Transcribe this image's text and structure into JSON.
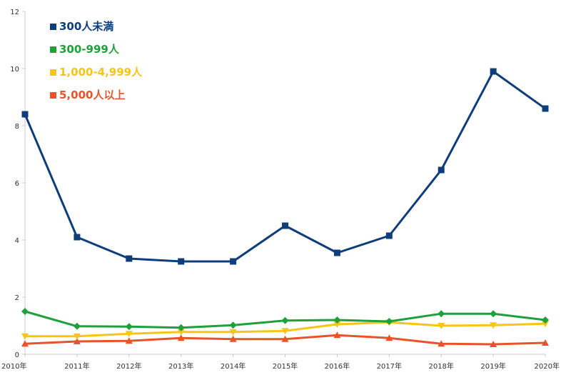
{
  "chart_data": {
    "type": "line",
    "title": "",
    "xlabel": "",
    "ylabel": "",
    "categories": [
      "2010年",
      "2011年",
      "2012年",
      "2013年",
      "2014年",
      "2015年",
      "2016年",
      "2017年",
      "2018年",
      "2019年",
      "2020年"
    ],
    "ylim": [
      0,
      12
    ],
    "yticks": [
      0,
      2,
      4,
      6,
      8,
      10,
      12
    ],
    "grid": false,
    "legend_position": "top-left",
    "series": [
      {
        "name": "300人未満",
        "color": "#0d3d7a",
        "marker": "square",
        "values": [
          8.4,
          4.1,
          3.35,
          3.25,
          3.25,
          4.5,
          3.55,
          4.15,
          6.45,
          9.9,
          8.6
        ]
      },
      {
        "name": "300-999人",
        "color": "#1ea03c",
        "marker": "diamond",
        "values": [
          1.5,
          0.98,
          0.97,
          0.93,
          1.02,
          1.18,
          1.2,
          1.15,
          1.42,
          1.42,
          1.2
        ]
      },
      {
        "name": "1,000-4,999人",
        "color": "#f5c518",
        "marker": "triangle-down",
        "values": [
          0.63,
          0.63,
          0.72,
          0.78,
          0.78,
          0.82,
          1.05,
          1.12,
          1.0,
          1.02,
          1.07
        ]
      },
      {
        "name": "5,000人以上",
        "color": "#e8542a",
        "marker": "triangle-up",
        "values": [
          0.37,
          0.45,
          0.47,
          0.57,
          0.53,
          0.53,
          0.67,
          0.57,
          0.37,
          0.35,
          0.4
        ]
      }
    ]
  }
}
